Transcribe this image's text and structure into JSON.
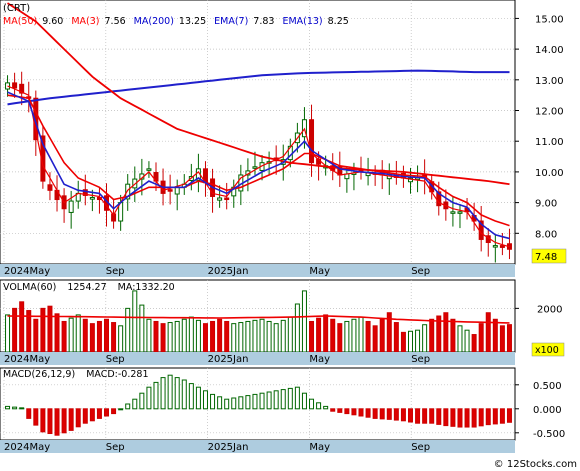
{
  "chart_data": [
    {
      "type": "candlestick",
      "title": "(CRT)",
      "indicators": [
        {
          "label": "MA(50)",
          "value": "9.60",
          "color": "#ff0000"
        },
        {
          "label": "MA(3)",
          "value": "7.56",
          "color": "#ff0000"
        },
        {
          "label": "MA(200)",
          "value": "13.25",
          "color": "#0000cc"
        },
        {
          "label": "EMA(7)",
          "value": "7.83",
          "color": "#0000cc"
        },
        {
          "label": "EMA(13)",
          "value": "8.25",
          "color": "#0000cc"
        }
      ],
      "y_ticks": [
        "8.00",
        "9.00",
        "10.00",
        "11.00",
        "12.00",
        "13.00",
        "14.00",
        "15.00"
      ],
      "ylim": [
        7.0,
        15.6
      ],
      "last_price": "7.48",
      "x_labels": [
        {
          "label": "2024May",
          "pos": 0.0
        },
        {
          "label": "Sep",
          "pos": 0.2
        },
        {
          "label": "2025Jan",
          "pos": 0.4
        },
        {
          "label": "May",
          "pos": 0.6
        },
        {
          "label": "Sep",
          "pos": 0.8
        }
      ],
      "bars": 72,
      "close_anchors": [
        [
          0,
          12.9
        ],
        [
          3,
          12.4
        ],
        [
          5,
          9.7
        ],
        [
          8,
          8.8
        ],
        [
          10,
          9.3
        ],
        [
          13,
          9.1
        ],
        [
          15,
          8.4
        ],
        [
          17,
          9.6
        ],
        [
          20,
          10.1
        ],
        [
          22,
          9.3
        ],
        [
          25,
          9.6
        ],
        [
          27,
          10.1
        ],
        [
          29,
          9.2
        ],
        [
          31,
          9.1
        ],
        [
          33,
          9.9
        ],
        [
          36,
          10.3
        ],
        [
          39,
          10.4
        ],
        [
          42,
          11.7
        ],
        [
          43,
          10.3
        ],
        [
          45,
          10.2
        ],
        [
          47,
          9.9
        ],
        [
          50,
          10.0
        ],
        [
          53,
          9.9
        ],
        [
          56,
          9.8
        ],
        [
          59,
          9.8
        ],
        [
          61,
          8.9
        ],
        [
          63,
          8.7
        ],
        [
          65,
          8.7
        ],
        [
          66,
          8.4
        ],
        [
          67,
          7.8
        ],
        [
          69,
          7.6
        ],
        [
          71,
          7.48
        ]
      ],
      "ma3_anchors": [
        [
          0,
          12.8
        ],
        [
          3,
          12.5
        ],
        [
          5,
          10.2
        ],
        [
          8,
          9.0
        ],
        [
          10,
          9.3
        ],
        [
          13,
          9.2
        ],
        [
          15,
          8.6
        ],
        [
          17,
          9.4
        ],
        [
          20,
          10.0
        ],
        [
          22,
          9.4
        ],
        [
          25,
          9.6
        ],
        [
          27,
          10.0
        ],
        [
          29,
          9.3
        ],
        [
          31,
          9.2
        ],
        [
          33,
          9.8
        ],
        [
          36,
          10.2
        ],
        [
          39,
          10.5
        ],
        [
          42,
          11.4
        ],
        [
          43,
          10.6
        ],
        [
          45,
          10.2
        ],
        [
          47,
          9.9
        ],
        [
          50,
          10.0
        ],
        [
          53,
          9.9
        ],
        [
          56,
          9.8
        ],
        [
          59,
          9.7
        ],
        [
          61,
          9.0
        ],
        [
          63,
          8.8
        ],
        [
          65,
          8.7
        ],
        [
          67,
          8.0
        ],
        [
          69,
          7.7
        ],
        [
          71,
          7.56
        ]
      ],
      "ma50_anchors": [
        [
          0,
          15.5
        ],
        [
          4,
          14.9
        ],
        [
          8,
          14.0
        ],
        [
          12,
          13.1
        ],
        [
          16,
          12.4
        ],
        [
          20,
          11.9
        ],
        [
          24,
          11.4
        ],
        [
          28,
          11.1
        ],
        [
          32,
          10.8
        ],
        [
          36,
          10.5
        ],
        [
          40,
          10.3
        ],
        [
          44,
          10.2
        ],
        [
          48,
          10.1
        ],
        [
          52,
          10.05
        ],
        [
          56,
          10.0
        ],
        [
          60,
          9.9
        ],
        [
          64,
          9.8
        ],
        [
          68,
          9.7
        ],
        [
          71,
          9.6
        ]
      ],
      "ma200_anchors": [
        [
          0,
          12.2
        ],
        [
          6,
          12.4
        ],
        [
          12,
          12.55
        ],
        [
          18,
          12.7
        ],
        [
          24,
          12.85
        ],
        [
          30,
          13.0
        ],
        [
          36,
          13.15
        ],
        [
          42,
          13.22
        ],
        [
          48,
          13.25
        ],
        [
          54,
          13.28
        ],
        [
          58,
          13.3
        ],
        [
          62,
          13.28
        ],
        [
          66,
          13.25
        ],
        [
          71,
          13.25
        ]
      ],
      "ema7_anchors": [
        [
          0,
          12.6
        ],
        [
          3,
          12.3
        ],
        [
          5,
          10.9
        ],
        [
          8,
          9.6
        ],
        [
          10,
          9.4
        ],
        [
          13,
          9.3
        ],
        [
          15,
          8.8
        ],
        [
          17,
          9.2
        ],
        [
          20,
          9.7
        ],
        [
          22,
          9.5
        ],
        [
          25,
          9.5
        ],
        [
          27,
          9.8
        ],
        [
          29,
          9.5
        ],
        [
          31,
          9.3
        ],
        [
          33,
          9.6
        ],
        [
          36,
          10.0
        ],
        [
          39,
          10.3
        ],
        [
          42,
          11.0
        ],
        [
          43,
          10.7
        ],
        [
          45,
          10.4
        ],
        [
          47,
          10.1
        ],
        [
          50,
          10.0
        ],
        [
          53,
          9.95
        ],
        [
          56,
          9.85
        ],
        [
          59,
          9.8
        ],
        [
          61,
          9.3
        ],
        [
          63,
          9.0
        ],
        [
          65,
          8.85
        ],
        [
          67,
          8.3
        ],
        [
          69,
          7.95
        ],
        [
          71,
          7.83
        ]
      ],
      "ema13_anchors": [
        [
          0,
          12.5
        ],
        [
          3,
          12.4
        ],
        [
          5,
          11.5
        ],
        [
          8,
          10.3
        ],
        [
          10,
          9.8
        ],
        [
          13,
          9.5
        ],
        [
          15,
          9.1
        ],
        [
          17,
          9.2
        ],
        [
          20,
          9.5
        ],
        [
          22,
          9.5
        ],
        [
          25,
          9.5
        ],
        [
          27,
          9.7
        ],
        [
          29,
          9.6
        ],
        [
          31,
          9.4
        ],
        [
          33,
          9.5
        ],
        [
          36,
          9.8
        ],
        [
          39,
          10.1
        ],
        [
          42,
          10.6
        ],
        [
          43,
          10.6
        ],
        [
          45,
          10.4
        ],
        [
          47,
          10.2
        ],
        [
          50,
          10.1
        ],
        [
          53,
          10.0
        ],
        [
          56,
          9.9
        ],
        [
          59,
          9.85
        ],
        [
          61,
          9.5
        ],
        [
          63,
          9.2
        ],
        [
          65,
          9.0
        ],
        [
          67,
          8.6
        ],
        [
          69,
          8.4
        ],
        [
          71,
          8.25
        ]
      ]
    },
    {
      "type": "bar",
      "title": "VOLMA(60)",
      "label_value": "1254.27",
      "ma_label": "MA:1332.20",
      "unit_label": "x100",
      "y_ticks": [
        "2000"
      ],
      "ylim": [
        0,
        3300
      ],
      "volume_anchors": [
        [
          0,
          1700
        ],
        [
          2,
          2300
        ],
        [
          4,
          1500
        ],
        [
          5,
          2000
        ],
        [
          6,
          2100
        ],
        [
          8,
          1400
        ],
        [
          10,
          1700
        ],
        [
          12,
          1300
        ],
        [
          14,
          1500
        ],
        [
          16,
          1200
        ],
        [
          18,
          2800
        ],
        [
          20,
          1500
        ],
        [
          22,
          1300
        ],
        [
          24,
          1400
        ],
        [
          26,
          1600
        ],
        [
          28,
          1300
        ],
        [
          30,
          1500
        ],
        [
          32,
          1300
        ],
        [
          34,
          1400
        ],
        [
          36,
          1500
        ],
        [
          38,
          1300
        ],
        [
          40,
          1600
        ],
        [
          42,
          2800
        ],
        [
          43,
          1400
        ],
        [
          45,
          1700
        ],
        [
          47,
          1300
        ],
        [
          50,
          1600
        ],
        [
          52,
          1200
        ],
        [
          54,
          1800
        ],
        [
          56,
          900
        ],
        [
          58,
          1000
        ],
        [
          60,
          1500
        ],
        [
          62,
          1800
        ],
        [
          64,
          1200
        ],
        [
          66,
          800
        ],
        [
          68,
          1800
        ],
        [
          70,
          1200
        ],
        [
          71,
          1254
        ]
      ],
      "ma_anchors": [
        [
          0,
          1650
        ],
        [
          10,
          1620
        ],
        [
          20,
          1580
        ],
        [
          30,
          1560
        ],
        [
          40,
          1600
        ],
        [
          45,
          1650
        ],
        [
          50,
          1600
        ],
        [
          55,
          1500
        ],
        [
          60,
          1430
        ],
        [
          65,
          1380
        ],
        [
          71,
          1332
        ]
      ]
    },
    {
      "type": "bar",
      "title": "MACD(26,12,9)",
      "label_value": "MACD:-0.281",
      "y_ticks": [
        "0.500",
        "0.000",
        "-0.500"
      ],
      "ylim": [
        -0.65,
        0.85
      ],
      "hist_anchors": [
        [
          0,
          0.05
        ],
        [
          2,
          0.02
        ],
        [
          3,
          -0.2
        ],
        [
          5,
          -0.48
        ],
        [
          7,
          -0.55
        ],
        [
          9,
          -0.45
        ],
        [
          11,
          -0.3
        ],
        [
          13,
          -0.2
        ],
        [
          15,
          -0.1
        ],
        [
          16,
          0.0
        ],
        [
          18,
          0.2
        ],
        [
          20,
          0.45
        ],
        [
          22,
          0.65
        ],
        [
          23,
          0.7
        ],
        [
          25,
          0.6
        ],
        [
          27,
          0.45
        ],
        [
          29,
          0.3
        ],
        [
          31,
          0.2
        ],
        [
          33,
          0.25
        ],
        [
          35,
          0.3
        ],
        [
          37,
          0.35
        ],
        [
          39,
          0.4
        ],
        [
          41,
          0.45
        ],
        [
          43,
          0.2
        ],
        [
          45,
          0.05
        ],
        [
          46,
          -0.05
        ],
        [
          48,
          -0.1
        ],
        [
          50,
          -0.15
        ],
        [
          52,
          -0.2
        ],
        [
          54,
          -0.22
        ],
        [
          56,
          -0.25
        ],
        [
          58,
          -0.3
        ],
        [
          60,
          -0.3
        ],
        [
          62,
          -0.35
        ],
        [
          64,
          -0.38
        ],
        [
          66,
          -0.38
        ],
        [
          68,
          -0.33
        ],
        [
          70,
          -0.3
        ],
        [
          71,
          -0.281
        ]
      ]
    }
  ],
  "watermark": "© 12Stocks.com"
}
